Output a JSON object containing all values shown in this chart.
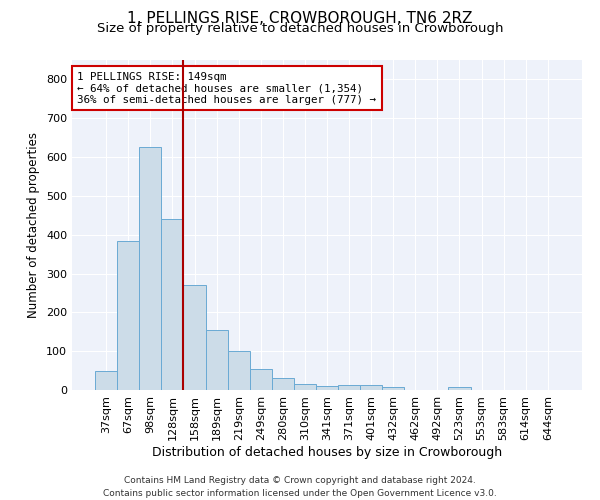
{
  "title": "1, PELLINGS RISE, CROWBOROUGH, TN6 2RZ",
  "subtitle": "Size of property relative to detached houses in Crowborough",
  "xlabel": "Distribution of detached houses by size in Crowborough",
  "ylabel": "Number of detached properties",
  "categories": [
    "37sqm",
    "67sqm",
    "98sqm",
    "128sqm",
    "158sqm",
    "189sqm",
    "219sqm",
    "249sqm",
    "280sqm",
    "310sqm",
    "341sqm",
    "371sqm",
    "401sqm",
    "432sqm",
    "462sqm",
    "492sqm",
    "523sqm",
    "553sqm",
    "583sqm",
    "614sqm",
    "644sqm"
  ],
  "values": [
    50,
    385,
    625,
    440,
    270,
    155,
    100,
    55,
    30,
    15,
    10,
    13,
    12,
    7,
    0,
    0,
    8,
    0,
    0,
    0,
    0
  ],
  "bar_color": "#ccdce8",
  "bar_edge_color": "#6aaad4",
  "vline_color": "#aa0000",
  "annotation_text": "1 PELLINGS RISE: 149sqm\n← 64% of detached houses are smaller (1,354)\n36% of semi-detached houses are larger (777) →",
  "annotation_box_color": "#ffffff",
  "annotation_box_edge": "#cc0000",
  "ylim": [
    0,
    850
  ],
  "yticks": [
    0,
    100,
    200,
    300,
    400,
    500,
    600,
    700,
    800
  ],
  "background_color": "#eef2fa",
  "footer": "Contains HM Land Registry data © Crown copyright and database right 2024.\nContains public sector information licensed under the Open Government Licence v3.0.",
  "title_fontsize": 11,
  "subtitle_fontsize": 9.5,
  "xlabel_fontsize": 9,
  "ylabel_fontsize": 8.5,
  "tick_fontsize": 8,
  "footer_fontsize": 6.5
}
